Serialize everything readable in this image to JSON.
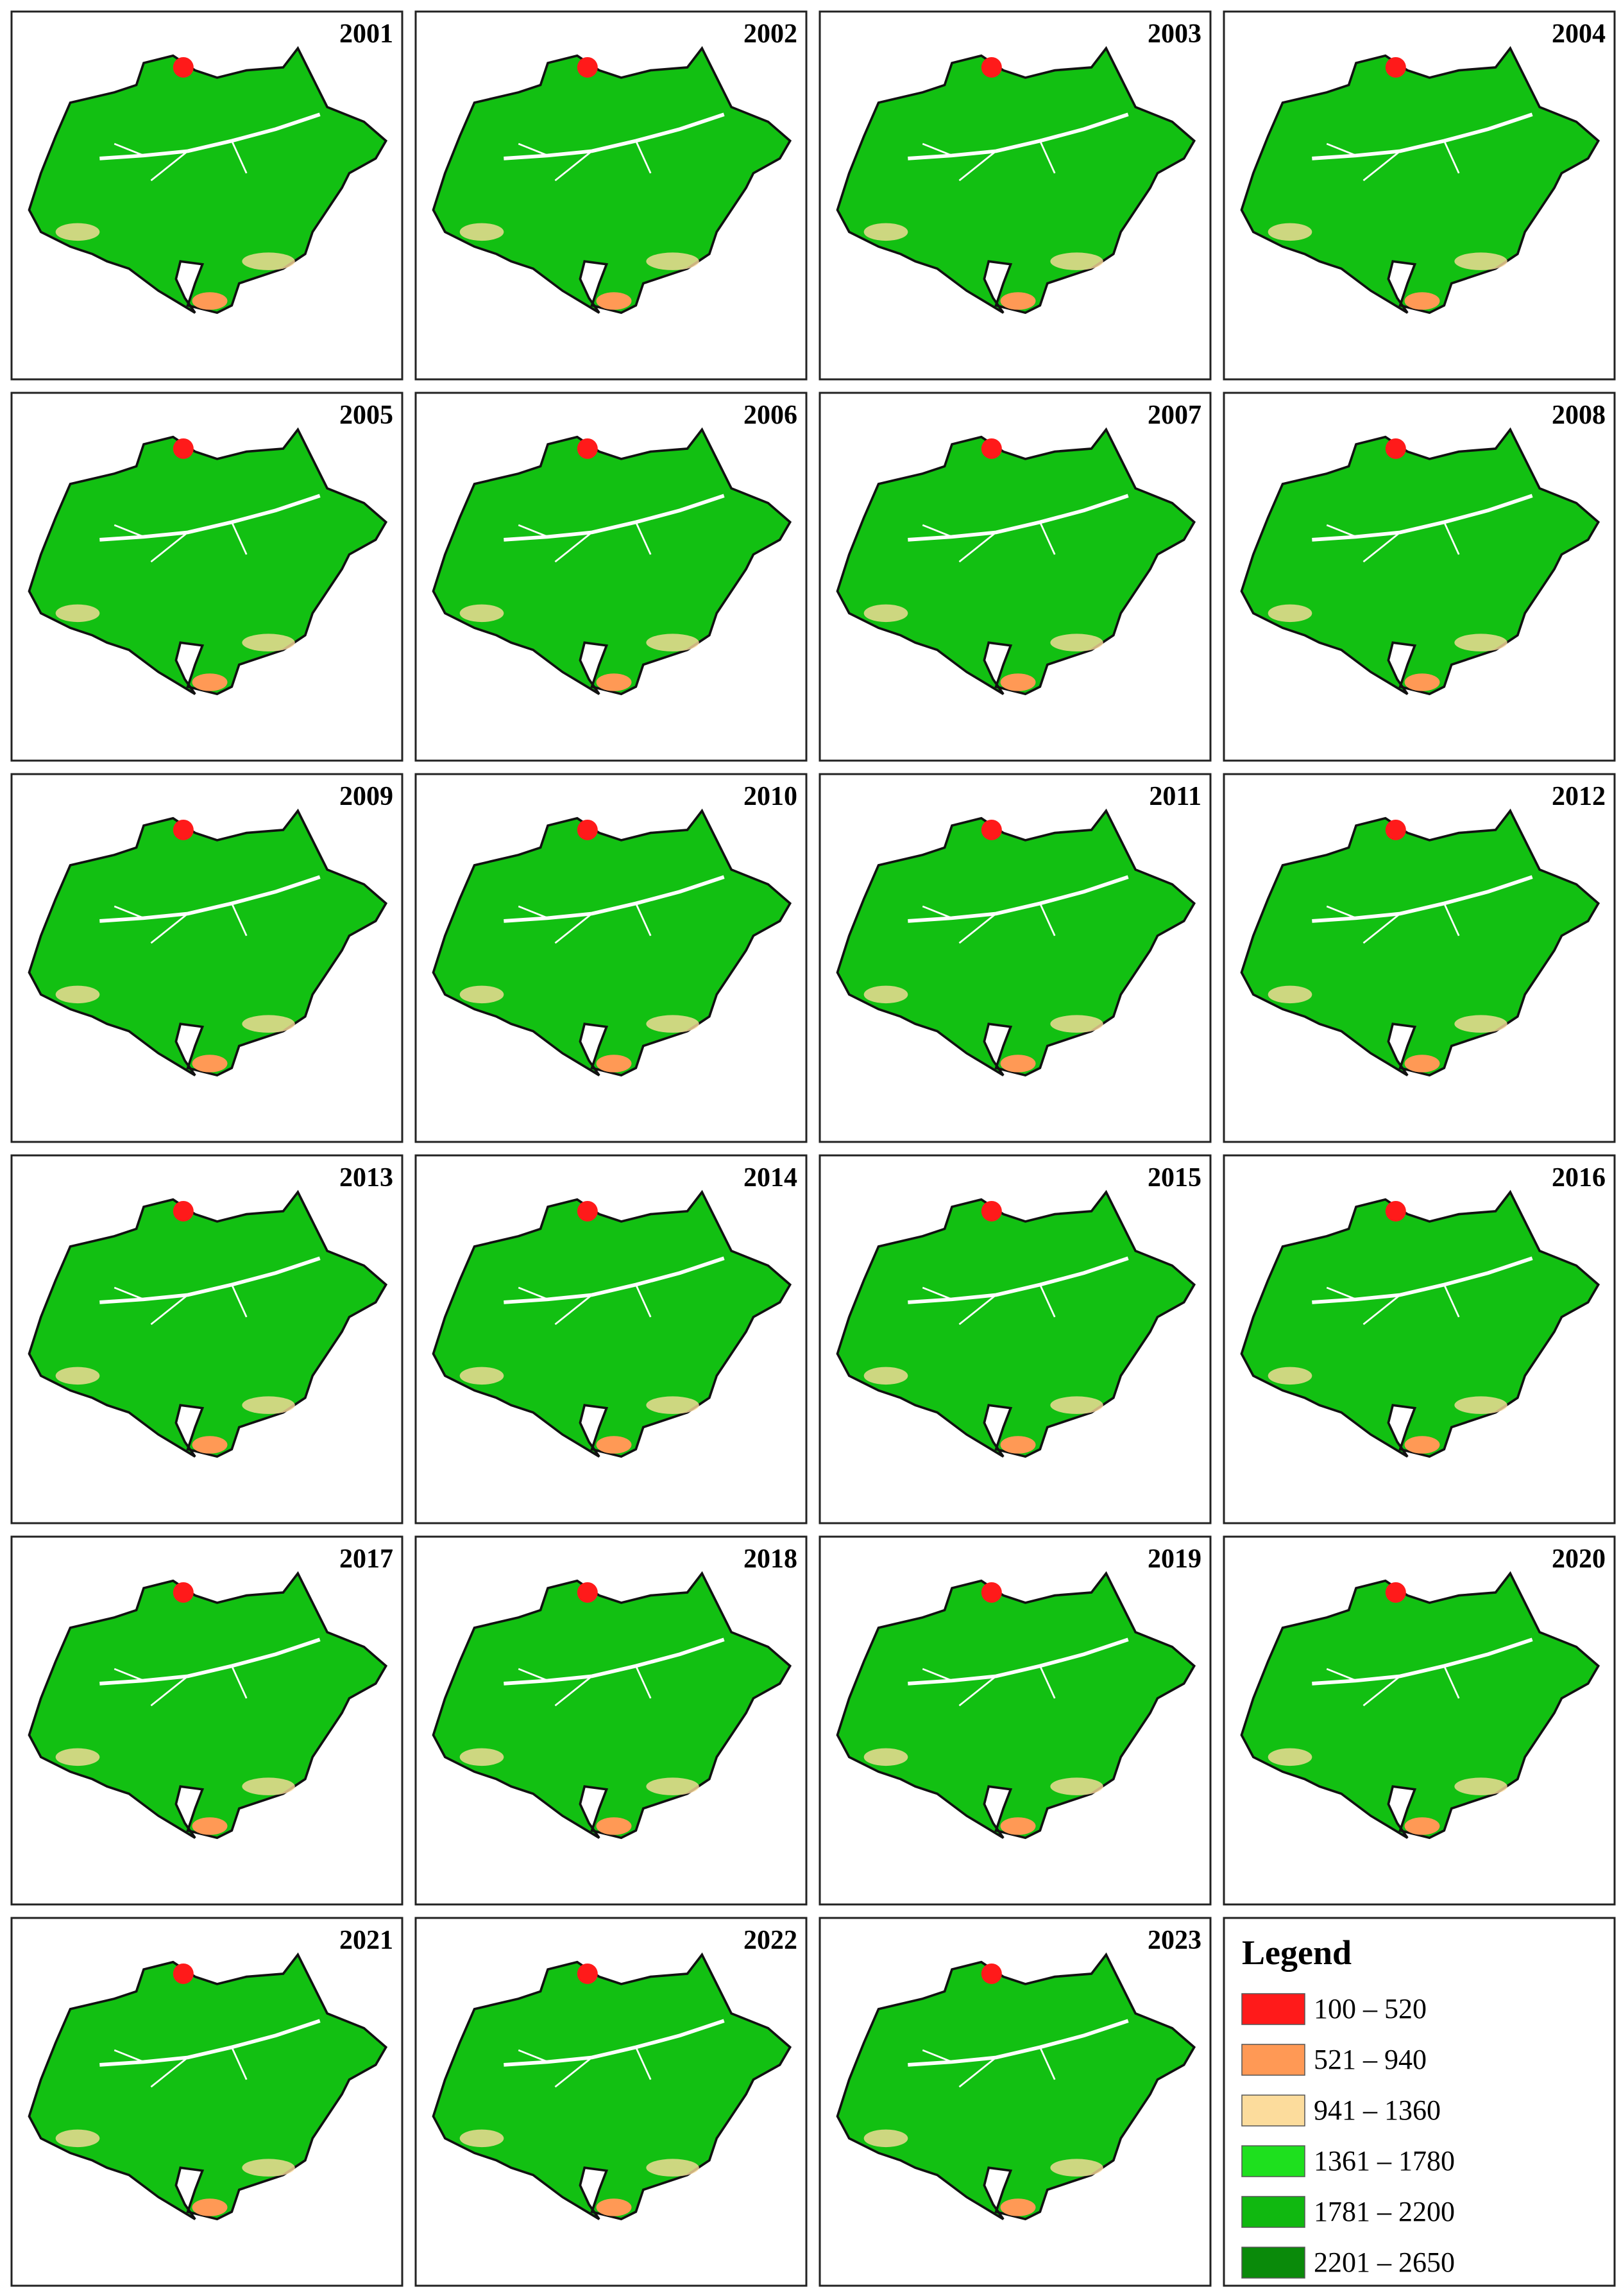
{
  "panels": [
    "2001",
    "2002",
    "2003",
    "2004",
    "2005",
    "2006",
    "2007",
    "2008",
    "2009",
    "2010",
    "2011",
    "2012",
    "2013",
    "2014",
    "2015",
    "2016",
    "2017",
    "2018",
    "2019",
    "2020",
    "2021",
    "2022",
    "2023"
  ],
  "legend": {
    "title": "Legend",
    "items": [
      {
        "label": "100 – 520",
        "color": "#ff1a1a"
      },
      {
        "label": "521 – 940",
        "color": "#ff9955"
      },
      {
        "label": "941 – 1360",
        "color": "#fcdc9c"
      },
      {
        "label": "1361 – 1780",
        "color": "#1ee01e"
      },
      {
        "label": "1781 – 2200",
        "color": "#10b810"
      },
      {
        "label": "2201 – 2650",
        "color": "#0a8a0a"
      }
    ]
  }
}
